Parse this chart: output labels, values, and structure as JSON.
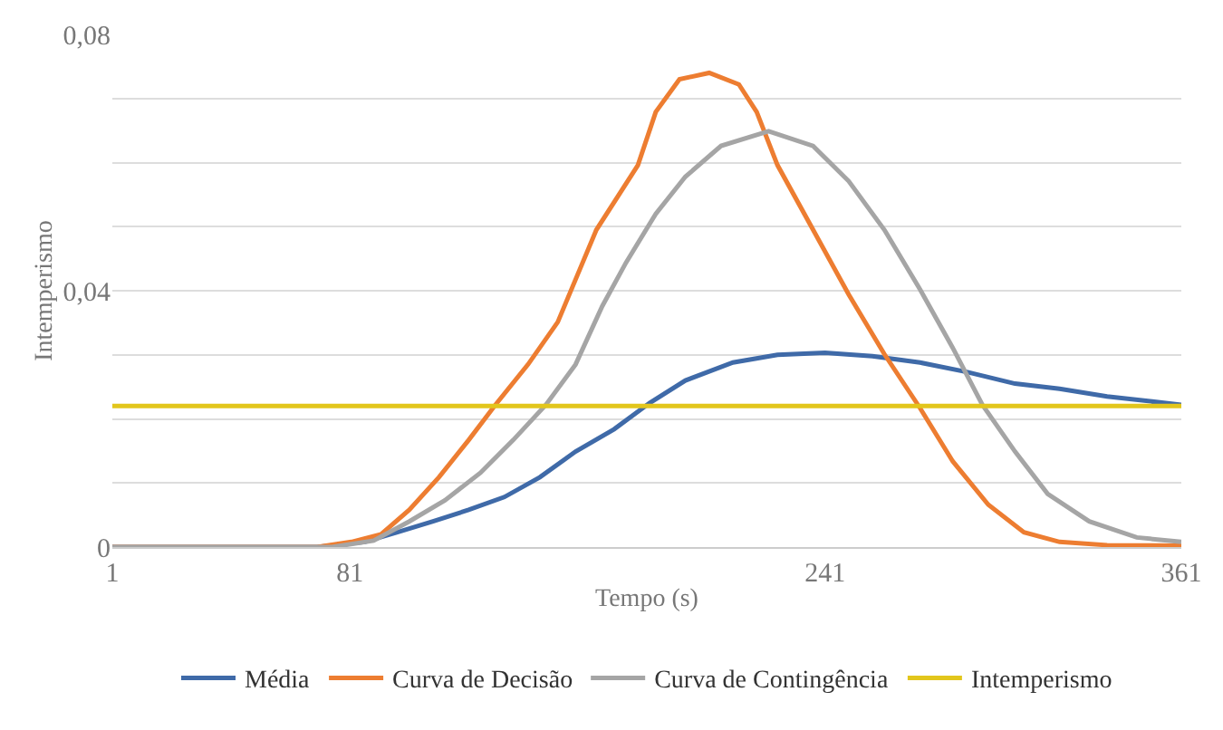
{
  "chart_data": {
    "type": "line",
    "xlabel": "Tempo (s)",
    "ylabel": "Intemperismo",
    "xlim": [
      1,
      361
    ],
    "xticks": [
      1,
      81,
      241,
      361
    ],
    "ylim": [
      0,
      0.08
    ],
    "yticks": [
      {
        "value": 0,
        "label": "0"
      },
      {
        "value": 0.01,
        "label": null
      },
      {
        "value": 0.02,
        "label": null
      },
      {
        "value": 0.03,
        "label": null
      },
      {
        "value": 0.04,
        "label": "0,04"
      },
      {
        "value": 0.05,
        "label": null
      },
      {
        "value": 0.06,
        "label": null
      },
      {
        "value": 0.07,
        "label": null
      },
      {
        "value": 0.08,
        "label": "0,08"
      }
    ],
    "grid": "y",
    "legend": "bottom",
    "marker": "none",
    "line_style": "solid",
    "series": [
      {
        "name": "Média",
        "color": "#3f6aa8",
        "x": [
          1,
          70,
          86,
          97,
          109,
          121,
          133,
          145,
          157,
          170,
          182,
          194,
          210,
          225,
          241,
          257,
          273,
          289,
          305,
          320,
          336,
          361
        ],
        "values": [
          0,
          0,
          0.0008,
          0.0023,
          0.004,
          0.0058,
          0.0078,
          0.0109,
          0.0149,
          0.0184,
          0.0225,
          0.026,
          0.0288,
          0.03,
          0.0303,
          0.0298,
          0.0288,
          0.0273,
          0.0255,
          0.0247,
          0.0235,
          0.0222
        ]
      },
      {
        "name": "Curva de Decisão",
        "color": "#ed7d31",
        "x": [
          1,
          70,
          81.5,
          91.5,
          101,
          111,
          121,
          130,
          141,
          151,
          164,
          178,
          184,
          192,
          202,
          212,
          218,
          225,
          237,
          249,
          261,
          273,
          284,
          296,
          308,
          320,
          336,
          361
        ],
        "values": [
          0,
          0,
          0.0008,
          0.002,
          0.0058,
          0.0109,
          0.0167,
          0.0222,
          0.0285,
          0.0351,
          0.0495,
          0.0596,
          0.0679,
          0.073,
          0.074,
          0.0722,
          0.0679,
          0.0596,
          0.0495,
          0.0394,
          0.0301,
          0.0217,
          0.0134,
          0.0066,
          0.0023,
          0.0008,
          0.0003,
          0.0002
        ]
      },
      {
        "name": "Curva de Contingência",
        "color": "#a5a5a5",
        "x": [
          1,
          75,
          89,
          101,
          113,
          125,
          136,
          147,
          157,
          166,
          174,
          184,
          194,
          206,
          222,
          237,
          249,
          261,
          273,
          284,
          294,
          305,
          316,
          330,
          346,
          361
        ],
        "values": [
          0,
          0,
          0.001,
          0.004,
          0.0073,
          0.0116,
          0.0167,
          0.0222,
          0.0285,
          0.0376,
          0.0444,
          0.052,
          0.0578,
          0.0626,
          0.0649,
          0.0626,
          0.0571,
          0.0495,
          0.0402,
          0.0311,
          0.0222,
          0.0149,
          0.0083,
          0.004,
          0.0015,
          0.0008
        ]
      },
      {
        "name": "Intemperismo",
        "color": "#e2c61c",
        "x": [
          1,
          361
        ],
        "values": [
          0.022,
          0.022
        ]
      }
    ]
  }
}
